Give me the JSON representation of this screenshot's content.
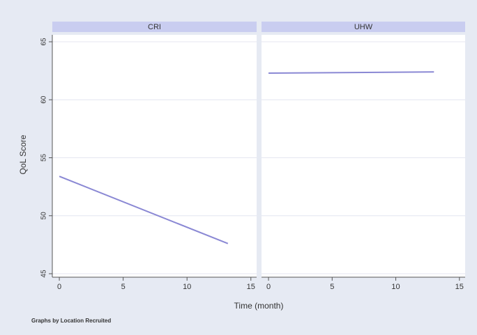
{
  "chart_data": {
    "type": "line",
    "y_label": "QoL Score",
    "x_label": "Time (month)",
    "note": "Graphs by Location Recruited",
    "color": "#8a88d4",
    "grid": true,
    "ylim": [
      44.7,
      65.6
    ],
    "yticks": [
      45,
      50,
      55,
      60,
      65
    ],
    "xlim": [
      -0.55,
      15.45
    ],
    "xticks": [
      0,
      5,
      10,
      15
    ],
    "panels": [
      {
        "title": "CRI",
        "x": [
          0,
          13.2
        ],
        "values": [
          53.4,
          47.6
        ]
      },
      {
        "title": "UHW",
        "x": [
          0,
          13
        ],
        "values": [
          62.3,
          62.4
        ]
      }
    ]
  }
}
